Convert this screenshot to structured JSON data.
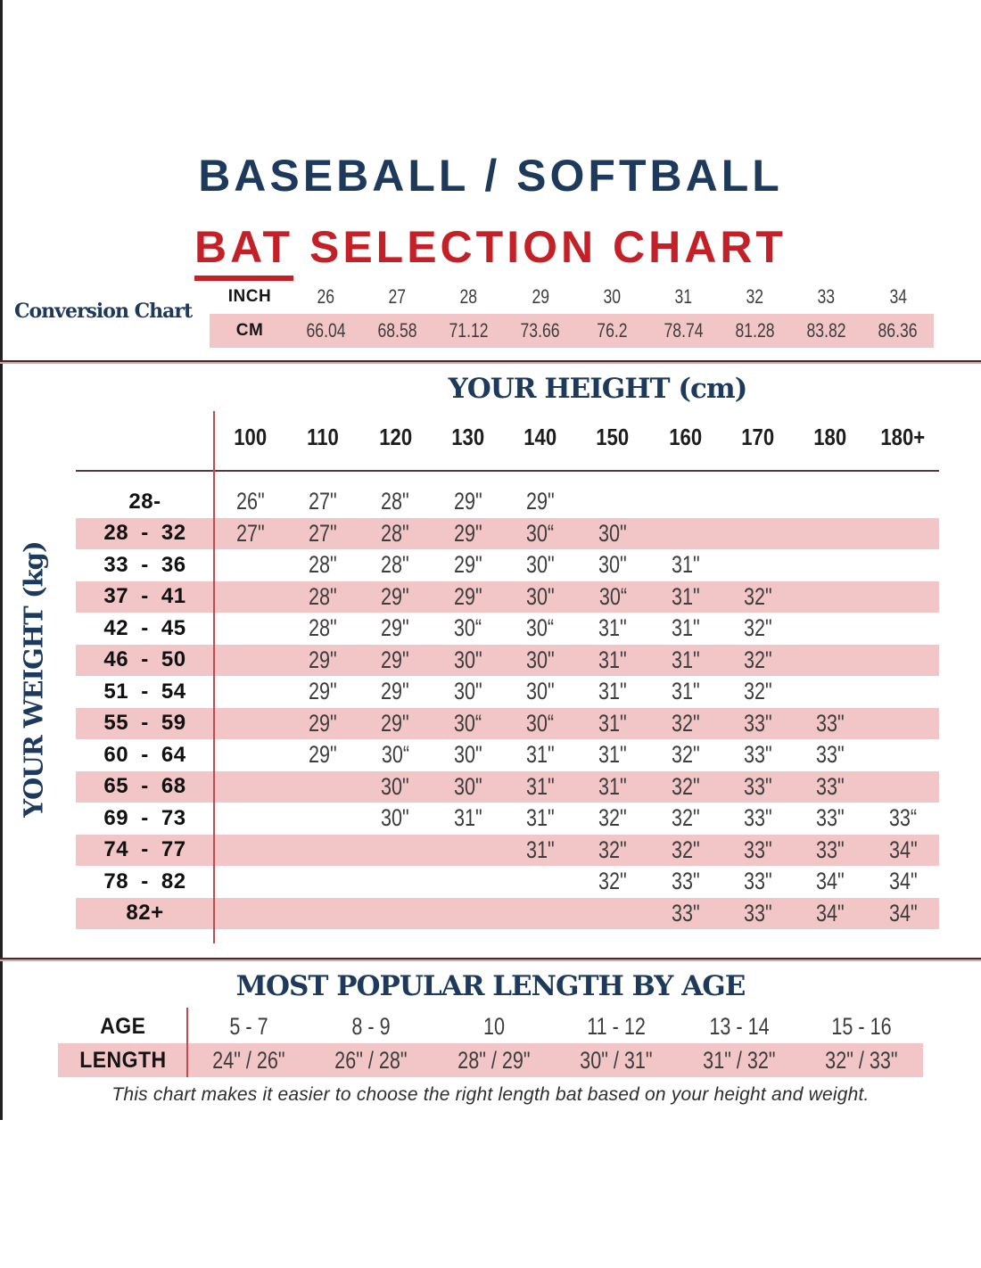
{
  "title": {
    "line1": "BASEBALL / SOFTBALL",
    "line2_red": "BAT",
    "line2_rest": " SELECTION CHART"
  },
  "footer": "This chart makes it easier to choose the right length bat based on your height and weight.",
  "colors": {
    "navy": "#1d3a5c",
    "red": "#c32127",
    "pink": "#f2c5c6",
    "cell_text": "#3d3d3d",
    "red_line": "#c04a4e"
  },
  "chart_data": [
    {
      "type": "table",
      "name": "conversion_chart",
      "label": "Conversion Chart",
      "inch_label": "INCH",
      "cm_label": "CM",
      "inches": [
        "26",
        "27",
        "28",
        "29",
        "30",
        "31",
        "32",
        "33",
        "34"
      ],
      "cms": [
        "66.04",
        "68.58",
        "71.12",
        "73.66",
        "76.2",
        "78.74",
        "81.28",
        "83.82",
        "86.36"
      ]
    },
    {
      "type": "table",
      "name": "bat_selection_grid",
      "title": "YOUR HEIGHT (cm)",
      "y_axis_label": "YOUR WEIGHT (kg)",
      "columns": [
        "100",
        "110",
        "120",
        "130",
        "140",
        "150",
        "160",
        "170",
        "180",
        "180+"
      ],
      "rows": [
        {
          "weight": "28-",
          "start": 0,
          "values": [
            "26\"",
            "27\"",
            "28\"",
            "29\"",
            "29\""
          ]
        },
        {
          "weight": "28 - 32",
          "start": 0,
          "values": [
            "27\"",
            "27\"",
            "28\"",
            "29\"",
            "30“",
            "30\""
          ]
        },
        {
          "weight": "33 - 36",
          "start": 1,
          "values": [
            "28\"",
            "28\"",
            "29\"",
            "30\"",
            "30\"",
            "31\""
          ]
        },
        {
          "weight": "37 - 41",
          "start": 1,
          "values": [
            "28\"",
            "29\"",
            "29\"",
            "30\"",
            "30“",
            "31\"",
            "32\""
          ]
        },
        {
          "weight": "42 - 45",
          "start": 1,
          "values": [
            "28\"",
            "29\"",
            "30“",
            "30“",
            "31\"",
            "31\"",
            "32\""
          ]
        },
        {
          "weight": "46 - 50",
          "start": 1,
          "values": [
            "29\"",
            "29\"",
            "30\"",
            "30\"",
            "31\"",
            "31\"",
            "32\""
          ]
        },
        {
          "weight": "51 - 54",
          "start": 1,
          "values": [
            "29\"",
            "29\"",
            "30\"",
            "30\"",
            "31\"",
            "31\"",
            "32\""
          ]
        },
        {
          "weight": "55 - 59",
          "start": 1,
          "values": [
            "29\"",
            "29\"",
            "30“",
            "30“",
            "31\"",
            "32\"",
            "33\"",
            "33\""
          ]
        },
        {
          "weight": "60 - 64",
          "start": 1,
          "values": [
            "29\"",
            "30“",
            "30\"",
            "31\"",
            "31\"",
            "32\"",
            "33\"",
            "33\""
          ]
        },
        {
          "weight": "65 - 68",
          "start": 2,
          "values": [
            "30\"",
            "30\"",
            "31\"",
            "31\"",
            "32\"",
            "33\"",
            "33\""
          ]
        },
        {
          "weight": "69 - 73",
          "start": 2,
          "values": [
            "30\"",
            "31\"",
            "31\"",
            "32\"",
            "32\"",
            "33\"",
            "33\"",
            "33“"
          ]
        },
        {
          "weight": "74 - 77",
          "start": 4,
          "values": [
            "31\"",
            "32\"",
            "32\"",
            "33\"",
            "33\"",
            "34\""
          ]
        },
        {
          "weight": "78 - 82",
          "start": 5,
          "values": [
            "32\"",
            "33\"",
            "33\"",
            "34\"",
            "34\""
          ]
        },
        {
          "weight": "82+",
          "start": 6,
          "values": [
            "33\"",
            "33\"",
            "34\"",
            "34\""
          ]
        }
      ]
    },
    {
      "type": "table",
      "name": "popular_length_by_age",
      "title": "MOST POPULAR LENGTH BY AGE",
      "age_label": "AGE",
      "length_label": "LENGTH",
      "ages": [
        "5 - 7",
        "8 - 9",
        "10",
        "11 - 12",
        "13 - 14",
        "15 - 16"
      ],
      "lengths": [
        "24\" / 26\"",
        "26\" / 28\"",
        "28\" / 29\"",
        "30\" / 31\"",
        "31\" / 32\"",
        "32\" / 33\""
      ]
    }
  ]
}
